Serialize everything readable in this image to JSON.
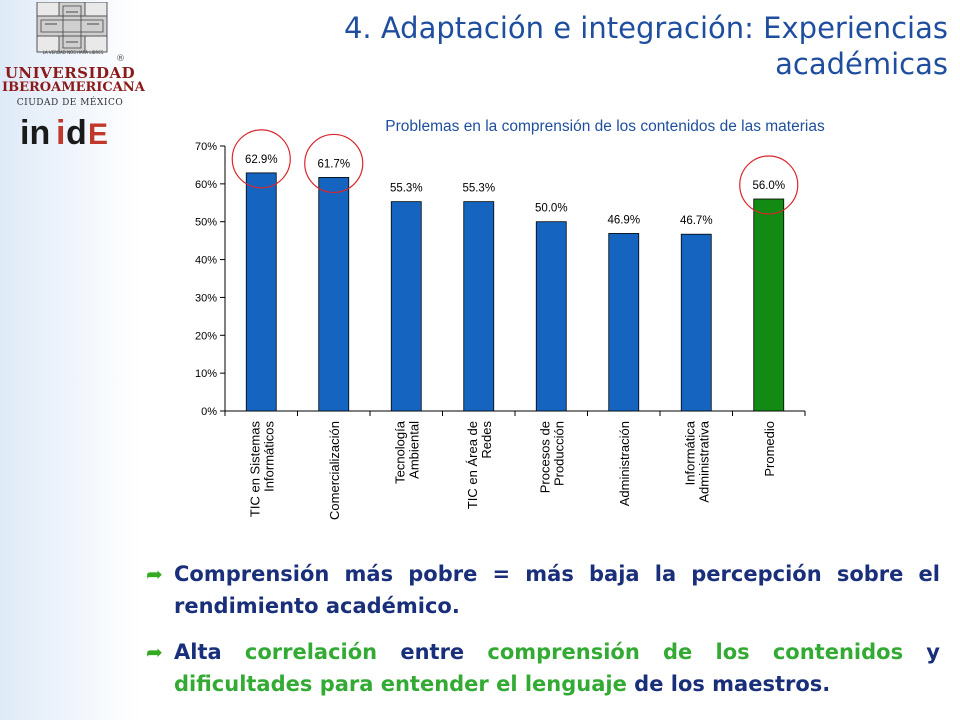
{
  "branding": {
    "university_line1": "UNIVERSIDAD",
    "university_line2": "IBEROAMERICANA",
    "university_line3": "CIUDAD DE MÉXICO",
    "motto": "LA VERDAD NOS HARÁ LIBRES",
    "registered": "®",
    "unit_logo_text": "inide",
    "unit_logo_color": "#c0392b",
    "unit_logo_dark": "#1a1a1a"
  },
  "slide": {
    "title_part1": "4. Adaptación e integración:",
    "title_part2": "Experiencias",
    "title_line2": "académicas"
  },
  "bullets": [
    {
      "segments": [
        {
          "text": "Comprensión más pobre = más baja la percepción sobre el rendimiento académico.",
          "style": "navy"
        }
      ]
    },
    {
      "segments": [
        {
          "text": "Alta ",
          "style": "navy"
        },
        {
          "text": "correlación ",
          "style": "green"
        },
        {
          "text": "entre ",
          "style": "navy"
        },
        {
          "text": "comprensión de los contenidos ",
          "style": "green"
        },
        {
          "text": "y ",
          "style": "navy"
        },
        {
          "text": "dificultades para entender el lenguaje ",
          "style": "green"
        },
        {
          "text": "de los maestros.",
          "style": "navy"
        }
      ]
    }
  ],
  "colors": {
    "bar_blue": "#1565c0",
    "bar_green": "#138a13",
    "circle_red": "#d9262c",
    "title_blue": "#1f4e9e",
    "accent_green": "#33aa33"
  },
  "chart_data": {
    "type": "bar",
    "title": "Problemas en la comprensión de los contenidos de las materias",
    "categories": [
      [
        "TIC en Sistemas",
        "Informáticos"
      ],
      [
        "Comercialización"
      ],
      [
        "Tecnología",
        "Ambiental"
      ],
      [
        "TIC en Área de",
        "Redes"
      ],
      [
        "Procesos de",
        "Producción"
      ],
      [
        "Administración"
      ],
      [
        "Informática",
        "Administrativa"
      ],
      [
        "Promedio"
      ]
    ],
    "values": [
      62.9,
      61.7,
      55.3,
      55.3,
      50.0,
      46.9,
      46.7,
      56.0
    ],
    "value_labels": [
      "62.9%",
      "61.7%",
      "55.3%",
      "55.3%",
      "50.0%",
      "46.9%",
      "46.7%",
      "56.0%"
    ],
    "highlighted": [
      0,
      1,
      7
    ],
    "average_index": 7,
    "ylim": [
      0,
      70
    ],
    "yticks": [
      0,
      10,
      20,
      30,
      40,
      50,
      60,
      70
    ],
    "ytick_labels": [
      "0%",
      "10%",
      "20%",
      "30%",
      "40%",
      "50%",
      "60%",
      "70%"
    ],
    "xlabel": "",
    "ylabel": "",
    "grid": false,
    "legend": "none"
  }
}
